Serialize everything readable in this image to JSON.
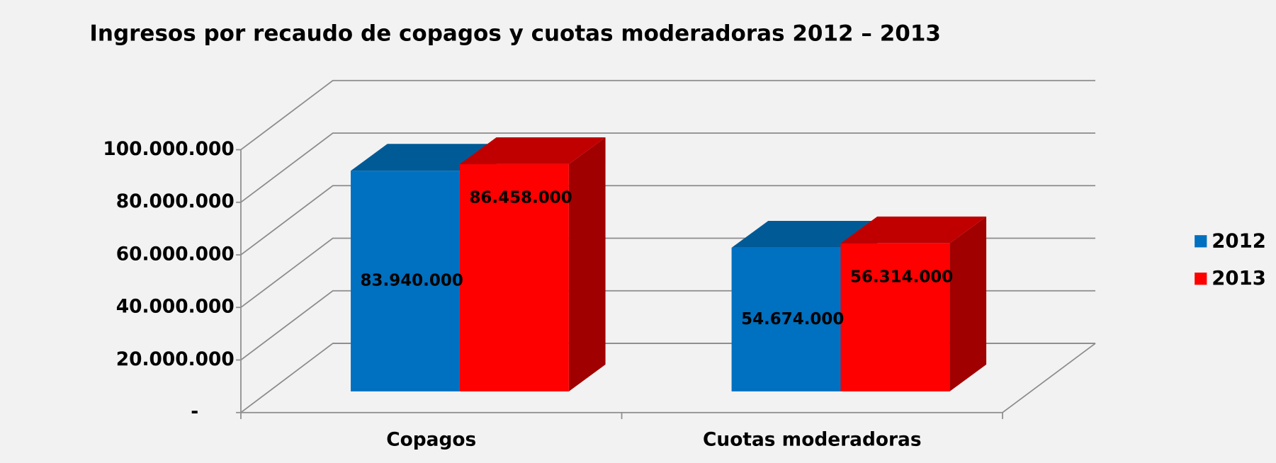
{
  "chart_data": {
    "type": "bar3d",
    "title": "Ingresos por recaudo de copagos y cuotas moderadoras 2012 – 2013",
    "categories": [
      "Copagos",
      "Cuotas moderadoras"
    ],
    "series": [
      {
        "name": "2012",
        "color": "#0070c0",
        "top_color": "#005a96",
        "side_color": "#00508a",
        "values": [
          83940000,
          54674000
        ],
        "value_labels": [
          "83.940.000",
          "54.674.000"
        ]
      },
      {
        "name": "2013",
        "color": "#ff0000",
        "top_color": "#c00000",
        "side_color": "#a00000",
        "values": [
          86458000,
          56314000
        ],
        "value_labels": [
          "86.458.000",
          "56.314.000"
        ]
      }
    ],
    "ylim": [
      0,
      100000000
    ],
    "yticks": [
      {
        "value": 0,
        "label": "-"
      },
      {
        "value": 20000000,
        "label": "20.000.000"
      },
      {
        "value": 40000000,
        "label": "40.000.000"
      },
      {
        "value": 60000000,
        "label": "60.000.000"
      },
      {
        "value": 80000000,
        "label": "80.000.000"
      },
      {
        "value": 100000000,
        "label": "100.000.000"
      }
    ],
    "grid": true,
    "legend": "right"
  }
}
